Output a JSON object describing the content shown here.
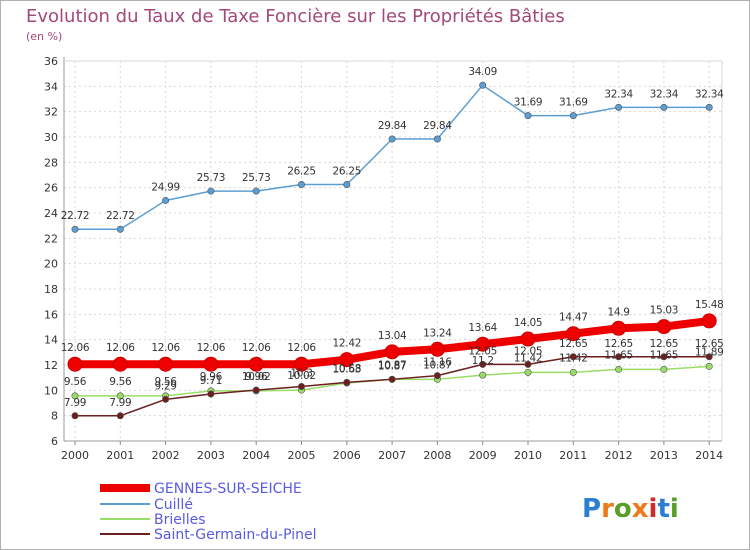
{
  "chart_data": {
    "type": "line",
    "title": "Evolution du Taux de Taxe Foncière sur les Propriétés Bâties",
    "subtitle": "(en %)",
    "x": [
      "2000",
      "2001",
      "2002",
      "2003",
      "2004",
      "2005",
      "2006",
      "2007",
      "2008",
      "2009",
      "2010",
      "2011",
      "2012",
      "2013",
      "2014"
    ],
    "ylim": [
      6,
      36
    ],
    "yticks": [
      6,
      8,
      10,
      12,
      14,
      16,
      18,
      20,
      22,
      24,
      26,
      28,
      30,
      32,
      34,
      36
    ],
    "grid": true,
    "legend_position": "bottom-left",
    "series": [
      {
        "name": "GENNES-SUR-SEICHE",
        "color": "#ee0000",
        "values": [
          12.06,
          12.06,
          12.06,
          12.06,
          12.06,
          12.06,
          12.42,
          13.04,
          13.24,
          13.64,
          14.05,
          14.47,
          14.9,
          15.03,
          15.48
        ],
        "labels": [
          "12.06",
          "12.06",
          "12.06",
          "12.06",
          "12.06",
          "12.06",
          "12.42",
          "13.04",
          "13.24",
          "13.64",
          "14.05",
          "14.47",
          "14.9",
          "15.03",
          "15.48"
        ]
      },
      {
        "name": "Cuillé",
        "color": "#5d9ed2",
        "values": [
          22.72,
          22.72,
          24.99,
          25.73,
          25.73,
          26.25,
          26.25,
          29.84,
          29.84,
          34.09,
          31.69,
          31.69,
          32.34,
          32.34,
          32.34
        ],
        "labels": [
          "22.72",
          "22.72",
          "24.99",
          "25.73",
          "25.73",
          "26.25",
          "26.25",
          "29.84",
          "29.84",
          "34.09",
          "31.69",
          "31.69",
          "32.34",
          "32.34",
          "32.34"
        ]
      },
      {
        "name": "Brielles",
        "color": "#99dd66",
        "values": [
          9.56,
          9.56,
          9.56,
          9.96,
          9.96,
          10.02,
          10.58,
          10.87,
          10.87,
          11.2,
          11.42,
          11.42,
          11.65,
          11.65,
          11.89
        ],
        "labels": [
          "9.56",
          "9.56",
          "9.56",
          "9.96",
          "9.96",
          "10.02",
          "10.58",
          "10.87",
          "10.87",
          "11.2",
          "11.42",
          "11.42",
          "11.65",
          "11.65",
          "11.89"
        ]
      },
      {
        "name": "Saint-Germain-du-Pinel",
        "color": "#6b1f1f",
        "values": [
          7.99,
          7.99,
          9.29,
          9.71,
          10.02,
          10.3,
          10.63,
          10.87,
          11.16,
          12.05,
          12.05,
          12.65,
          12.65,
          12.65,
          12.65
        ],
        "labels": [
          "7.99",
          "7.99",
          "9.29",
          "9.71",
          "10.02",
          "10.3",
          "10.63",
          "10.87",
          "11.16",
          "12.05",
          "12.05",
          "12.65",
          "12.65",
          "12.65",
          "12.65"
        ]
      }
    ]
  },
  "logo": {
    "text": "Proxiti"
  }
}
